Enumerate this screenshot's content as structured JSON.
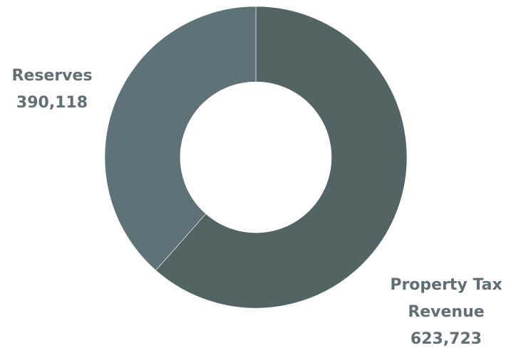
{
  "chart_data": {
    "type": "pie",
    "variant": "donut",
    "title": "",
    "slices": [
      {
        "name_lines": [
          "Property Tax",
          "Revenue"
        ],
        "value": 623723,
        "value_label": "623,723",
        "color": "#526464"
      },
      {
        "name_lines": [
          "Reserves"
        ],
        "value": 390118,
        "value_label": "390,118",
        "color": "#5f7277"
      }
    ],
    "label_color": "#5f6f73",
    "legend": "none"
  }
}
